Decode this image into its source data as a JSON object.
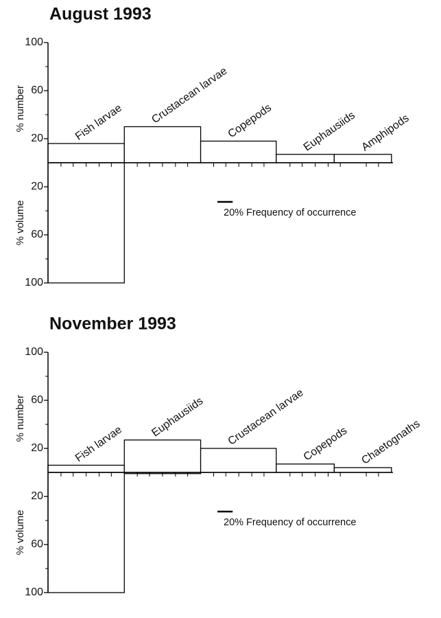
{
  "chart_data": [
    {
      "type": "costello",
      "title": "August 1993",
      "categories": [
        "Fish larvae",
        "Crustacean larvae",
        "Copepods",
        "Euphausiids",
        "Amphipods"
      ],
      "frequency": [
        100,
        100,
        99,
        76,
        75
      ],
      "number": [
        16,
        30,
        18,
        7,
        7
      ],
      "volume": [
        100,
        0,
        0,
        0,
        0
      ],
      "ylabel_top": "% number",
      "ylabel_bottom": "% volume",
      "ylim": [
        0,
        100
      ],
      "yticks": [
        20,
        60,
        100
      ],
      "yminor_ticks": [
        40,
        80
      ],
      "xlim": [
        0,
        452
      ],
      "xminor_ticks": [
        17,
        33,
        50,
        67,
        83,
        117,
        133,
        150,
        167,
        183,
        217,
        233,
        250,
        267,
        283,
        317,
        333,
        350,
        367,
        383,
        417,
        433
      ],
      "scale_bar": {
        "value": 20,
        "label": "20% Frequency of occurrence"
      },
      "color": "#ffffff"
    },
    {
      "type": "costello",
      "title": "November 1993",
      "categories": [
        "Fish larvae",
        "Euphausiids",
        "Crustacean larvae",
        "Copepods",
        "Chaetognaths"
      ],
      "frequency": [
        100,
        100,
        99,
        76,
        75
      ],
      "number": [
        6,
        27,
        20,
        7,
        4
      ],
      "volume": [
        100,
        1,
        0,
        0,
        0
      ],
      "ylabel_top": "% number",
      "ylabel_bottom": "% volume",
      "ylim": [
        0,
        100
      ],
      "yticks": [
        20,
        60,
        100
      ],
      "yminor_ticks": [
        40,
        80
      ],
      "xlim": [
        0,
        452
      ],
      "xminor_ticks": [
        17,
        33,
        50,
        67,
        83,
        117,
        133,
        150,
        167,
        183,
        217,
        233,
        250,
        267,
        283,
        317,
        333,
        350,
        367,
        383,
        417,
        433
      ],
      "scale_bar": {
        "value": 20,
        "label": "20% Frequency of occurrence"
      },
      "color": "#ffffff"
    }
  ]
}
